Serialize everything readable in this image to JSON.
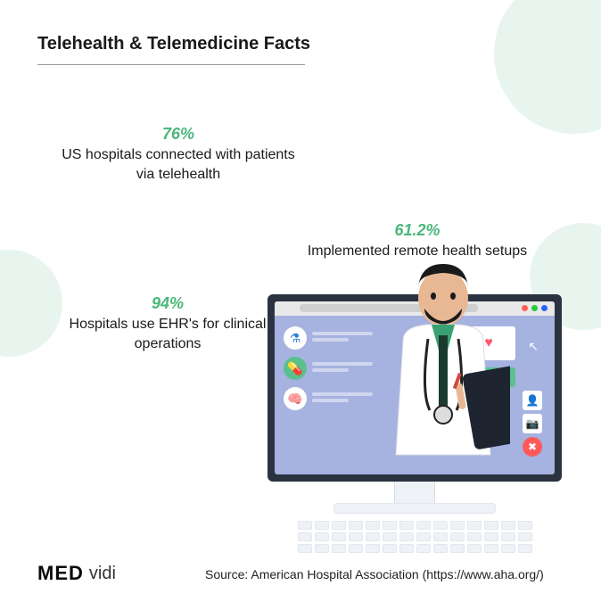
{
  "title": "Telehealth & Telemedicine Facts",
  "colors": {
    "accent_green": "#4ab77a",
    "bg_circle": "#e8f5ef",
    "monitor_frame": "#2b3340",
    "screen_bg": "#a6b2e0",
    "check_bg": "#5ac18e",
    "heart": "#ff5a6e",
    "title_underline": "#999999",
    "text": "#1a1a1a"
  },
  "stats": [
    {
      "pct": "76%",
      "desc": "US hospitals connected with patients via telehealth"
    },
    {
      "pct": "61.2%",
      "desc": "Implemented remote health setups"
    },
    {
      "pct": "94%",
      "desc": "Hospitals use EHR's for clinical operations"
    }
  ],
  "browser_dots": [
    "#ff5f56",
    "#27c93f",
    "#2962ff"
  ],
  "left_panel_icons": [
    {
      "bg": "#ffffff",
      "fg": "#2e7bd6",
      "glyph": "⚗"
    },
    {
      "bg": "#5ac18e",
      "fg": "#ffffff",
      "glyph": "💊"
    },
    {
      "bg": "#ffffff",
      "fg": "#5ac18e",
      "glyph": "🧠"
    }
  ],
  "side_icons": [
    {
      "glyph": "👤",
      "bg": "#ffffff"
    },
    {
      "glyph": "📷",
      "bg": "#ffffff"
    },
    {
      "glyph": "✖",
      "bg": "#ff5a5a"
    }
  ],
  "checks_count": 3,
  "heart_glyph": "♥",
  "cursor_glyph": "↖",
  "keyboard": {
    "rows": 3,
    "keys_per_row": 14
  },
  "source": "Source: American Hospital Association (https://www.aha.org/)",
  "logo": {
    "med": "MED",
    "vidi": "vidi"
  }
}
